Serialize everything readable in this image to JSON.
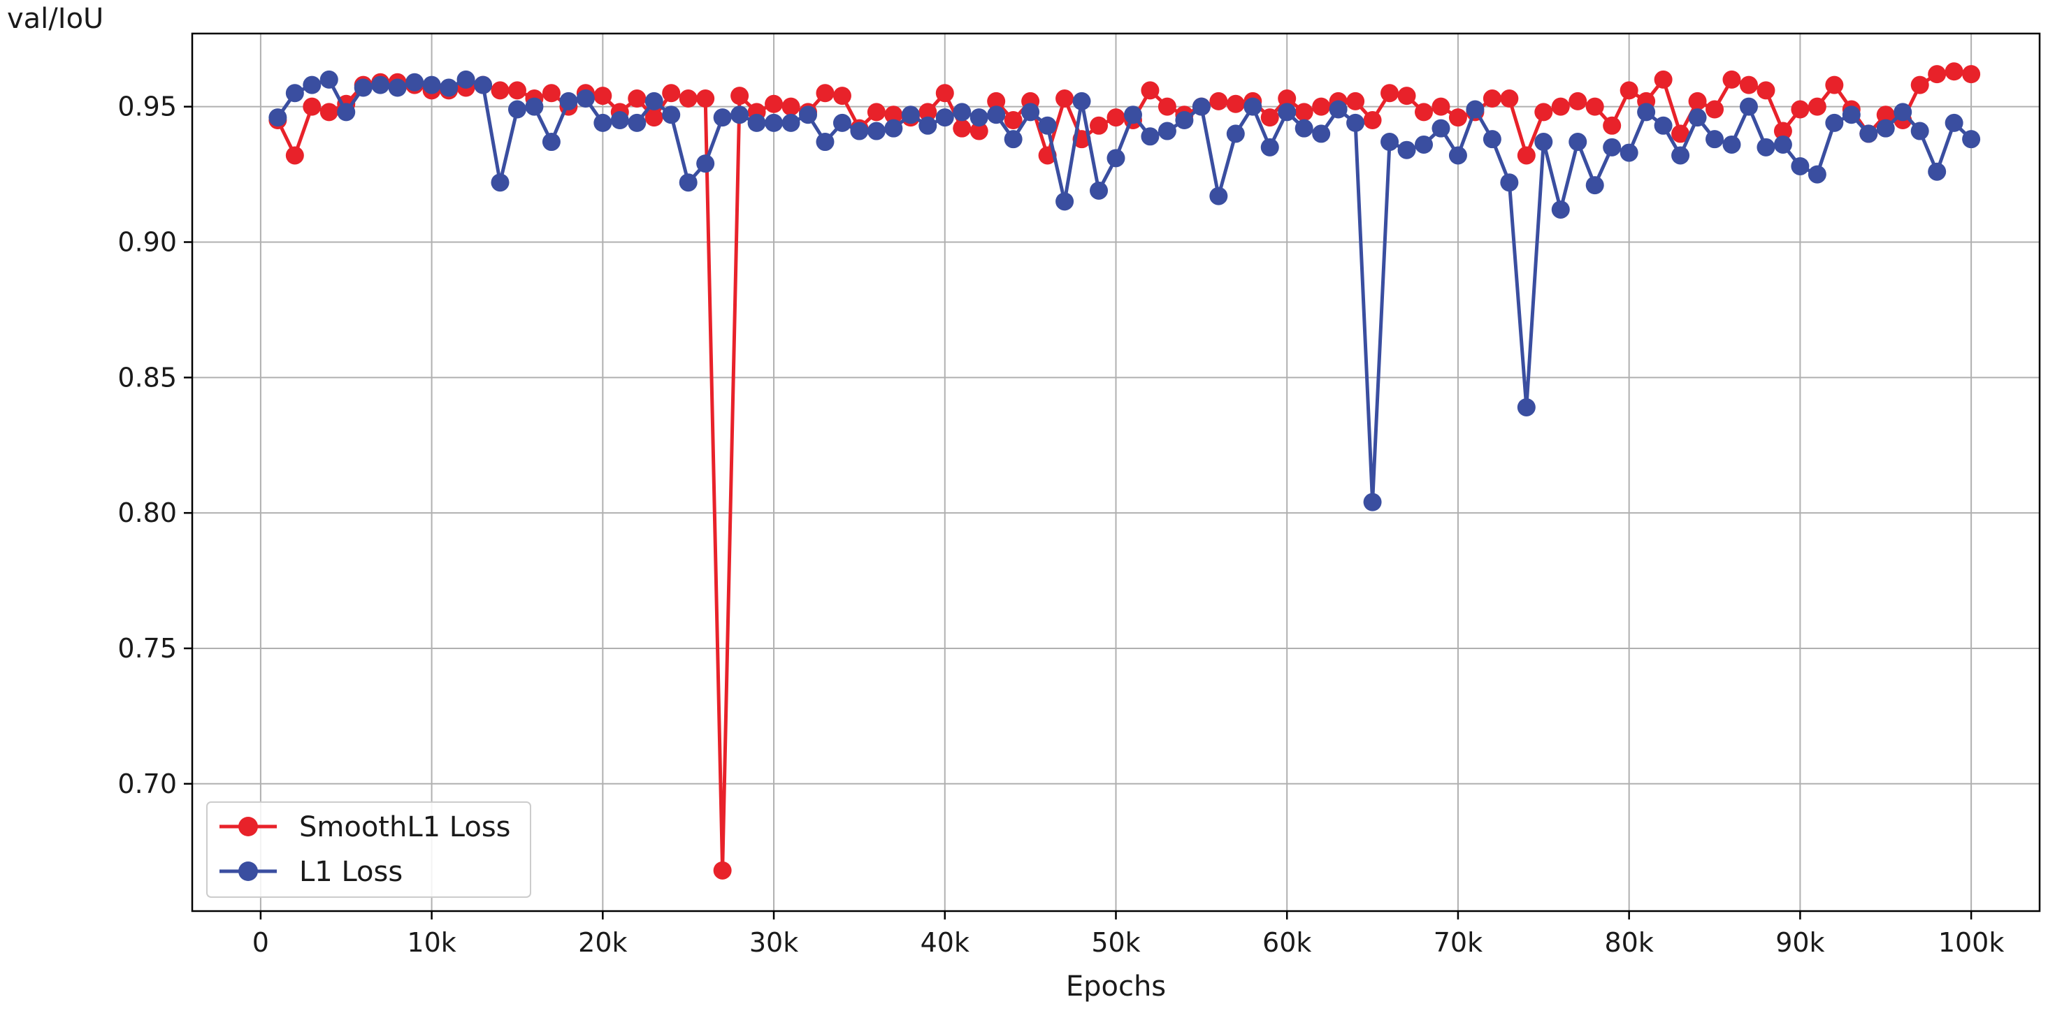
{
  "chart_data": {
    "type": "line",
    "title": "",
    "xlabel": "Epochs",
    "ylabel": "val/IoU",
    "xlim": [
      -4000,
      104000
    ],
    "ylim": [
      0.653,
      0.977
    ],
    "xticks": [
      0,
      10000,
      20000,
      30000,
      40000,
      50000,
      60000,
      70000,
      80000,
      90000,
      100000
    ],
    "xtick_labels": [
      "0",
      "10k",
      "20k",
      "30k",
      "40k",
      "50k",
      "60k",
      "70k",
      "80k",
      "90k",
      "100k"
    ],
    "yticks": [
      0.7,
      0.75,
      0.8,
      0.85,
      0.9,
      0.95
    ],
    "ytick_labels": [
      "0.70",
      "0.75",
      "0.80",
      "0.85",
      "0.90",
      "0.95"
    ],
    "grid": true,
    "legend_position": "lower-left",
    "x": [
      1000,
      2000,
      3000,
      4000,
      5000,
      6000,
      7000,
      8000,
      9000,
      10000,
      11000,
      12000,
      13000,
      14000,
      15000,
      16000,
      17000,
      18000,
      19000,
      20000,
      21000,
      22000,
      23000,
      24000,
      25000,
      26000,
      27000,
      28000,
      29000,
      30000,
      31000,
      32000,
      33000,
      34000,
      35000,
      36000,
      37000,
      38000,
      39000,
      40000,
      41000,
      42000,
      43000,
      44000,
      45000,
      46000,
      47000,
      48000,
      49000,
      50000,
      51000,
      52000,
      53000,
      54000,
      55000,
      56000,
      57000,
      58000,
      59000,
      60000,
      61000,
      62000,
      63000,
      64000,
      65000,
      66000,
      67000,
      68000,
      69000,
      70000,
      71000,
      72000,
      73000,
      74000,
      75000,
      76000,
      77000,
      78000,
      79000,
      80000,
      81000,
      82000,
      83000,
      84000,
      85000,
      86000,
      87000,
      88000,
      89000,
      90000,
      91000,
      92000,
      93000,
      94000,
      95000,
      96000,
      97000,
      98000,
      99000,
      100000
    ],
    "series": [
      {
        "name": "SmoothL1 Loss",
        "color": "#e8222a",
        "values": [
          0.945,
          0.932,
          0.95,
          0.948,
          0.951,
          0.958,
          0.959,
          0.959,
          0.958,
          0.956,
          0.956,
          0.957,
          0.958,
          0.956,
          0.956,
          0.953,
          0.955,
          0.95,
          0.955,
          0.954,
          0.948,
          0.953,
          0.946,
          0.955,
          0.953,
          0.953,
          0.668,
          0.954,
          0.948,
          0.951,
          0.95,
          0.948,
          0.955,
          0.954,
          0.942,
          0.948,
          0.947,
          0.946,
          0.948,
          0.955,
          0.942,
          0.941,
          0.952,
          0.945,
          0.952,
          0.932,
          0.953,
          0.938,
          0.943,
          0.946,
          0.945,
          0.956,
          0.95,
          0.947,
          0.95,
          0.952,
          0.951,
          0.952,
          0.946,
          0.953,
          0.948,
          0.95,
          0.952,
          0.952,
          0.945,
          0.955,
          0.954,
          0.948,
          0.95,
          0.946,
          0.948,
          0.953,
          0.953,
          0.932,
          0.948,
          0.95,
          0.952,
          0.95,
          0.943,
          0.956,
          0.952,
          0.96,
          0.94,
          0.952,
          0.949,
          0.96,
          0.958,
          0.956,
          0.941,
          0.949,
          0.95,
          0.958,
          0.949,
          0.94,
          0.947,
          0.945,
          0.958,
          0.962,
          0.963,
          0.962
        ]
      },
      {
        "name": "L1 Loss",
        "color": "#3a4ea0",
        "values": [
          0.946,
          0.955,
          0.958,
          0.96,
          0.948,
          0.957,
          0.958,
          0.957,
          0.959,
          0.958,
          0.957,
          0.96,
          0.958,
          0.922,
          0.949,
          0.95,
          0.937,
          0.952,
          0.953,
          0.944,
          0.945,
          0.944,
          0.952,
          0.947,
          0.922,
          0.929,
          0.946,
          0.947,
          0.944,
          0.944,
          0.944,
          0.947,
          0.937,
          0.944,
          0.941,
          0.941,
          0.942,
          0.947,
          0.943,
          0.946,
          0.948,
          0.946,
          0.947,
          0.938,
          0.948,
          0.943,
          0.915,
          0.952,
          0.919,
          0.931,
          0.947,
          0.939,
          0.941,
          0.945,
          0.95,
          0.917,
          0.94,
          0.95,
          0.935,
          0.948,
          0.942,
          0.94,
          0.949,
          0.944,
          0.804,
          0.937,
          0.934,
          0.936,
          0.942,
          0.932,
          0.949,
          0.938,
          0.922,
          0.839,
          0.937,
          0.912,
          0.937,
          0.921,
          0.935,
          0.933,
          0.948,
          0.943,
          0.932,
          0.946,
          0.938,
          0.936,
          0.95,
          0.935,
          0.936,
          0.928,
          0.925,
          0.944,
          0.947,
          0.94,
          0.942,
          0.948,
          0.941,
          0.926,
          0.944,
          0.938
        ]
      }
    ]
  }
}
